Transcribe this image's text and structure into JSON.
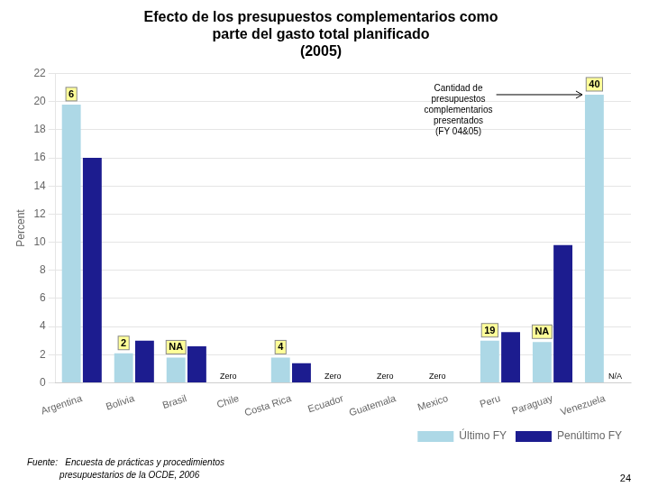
{
  "chart_data": {
    "type": "bar",
    "title": "Efecto de los presupuestos complementarios como\nparte del gasto total planificado\n(2005)",
    "ylabel": "Percent",
    "categories": [
      "Argentina",
      "Bolivia",
      "Brasil",
      "Chile",
      "Costa Rica",
      "Ecuador",
      "Guatemala",
      "Mexico",
      "Peru",
      "Paraguay",
      "Venezuela"
    ],
    "series": [
      {
        "name": "Último FY",
        "color": "#ADD8E6",
        "values": [
          19.8,
          2.1,
          1.8,
          0.0,
          1.8,
          0.0,
          0.0,
          0.0,
          3.0,
          2.9,
          20.5
        ],
        "bar_labels": [
          "6",
          "2",
          "NA",
          "Zero",
          "4",
          "Zero",
          "Zero",
          "Zero",
          "19",
          "NA",
          "40"
        ]
      },
      {
        "name": "Penúltimo FY",
        "color": "#1C1C8F",
        "values": [
          16.0,
          3.0,
          2.6,
          0.0,
          1.4,
          0.0,
          0.0,
          0.0,
          3.6,
          9.8,
          0.0
        ],
        "bar_labels": [
          null,
          null,
          null,
          null,
          null,
          null,
          null,
          null,
          null,
          null,
          "N/A"
        ]
      }
    ],
    "ylim": [
      0,
      22
    ],
    "yticks": [
      0,
      2,
      4,
      6,
      8,
      10,
      12,
      14,
      16,
      18,
      20,
      22
    ],
    "grid": true,
    "legend": "lower right",
    "annotations": [
      {
        "text": "Cantidad de\npresupuestos\ncomplementarios\npresentados\n(FY 04&05)",
        "target": "Venezuela"
      }
    ],
    "source": [
      "Fuente:   Encuesta de prácticas y procedimientos",
      "             presupuestarios de la OCDE, 2006"
    ],
    "page_number": "24"
  }
}
